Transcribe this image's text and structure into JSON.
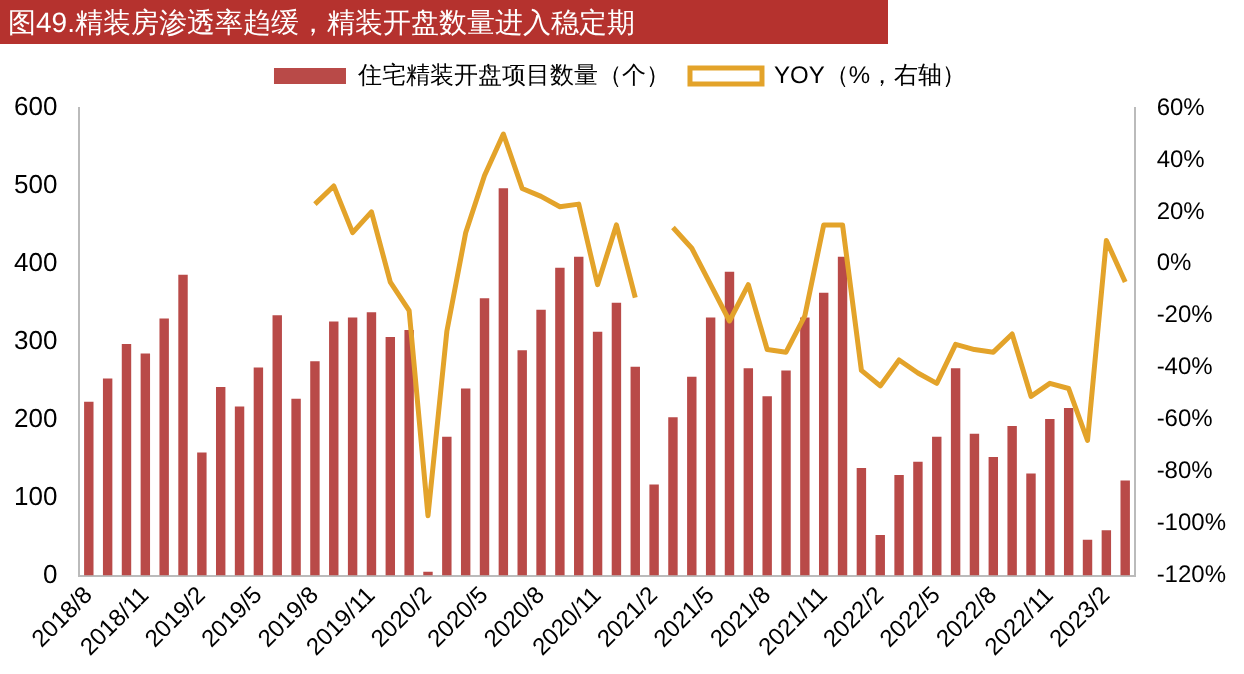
{
  "chart_data": {
    "type": "bar",
    "title": "图49.精装房渗透率趋缓，精装开盘数量进入稳定期",
    "categories": [
      "2018/8",
      null,
      null,
      "2018/11",
      null,
      null,
      "2019/2",
      null,
      null,
      "2019/5",
      null,
      null,
      "2019/8",
      null,
      null,
      "2019/11",
      null,
      null,
      "2020/2",
      null,
      null,
      "2020/5",
      null,
      null,
      "2020/8",
      null,
      null,
      "2020/11",
      null,
      null,
      "2021/2",
      null,
      null,
      "2021/5",
      null,
      null,
      "2021/8",
      null,
      null,
      "2021/11",
      null,
      null,
      "2022/2",
      null,
      null,
      "2022/5",
      null,
      null,
      "2022/8",
      null,
      null,
      "2022/11",
      null,
      null,
      "2023/2",
      null
    ],
    "series": [
      {
        "name": "住宅精装开盘项目数量（个）",
        "color": "#b94a48",
        "values": [
          223,
          253,
          297,
          285,
          330,
          386,
          158,
          242,
          217,
          267,
          334,
          227,
          275,
          326,
          331,
          338,
          306,
          315,
          5,
          178,
          240,
          356,
          497,
          289,
          341,
          395,
          409,
          313,
          350,
          268,
          117,
          203,
          255,
          331,
          390,
          266,
          230,
          263,
          331,
          363,
          409,
          138,
          52,
          129,
          146,
          178,
          266,
          182,
          152,
          192,
          131,
          201,
          215,
          46,
          58,
          122
        ]
      },
      {
        "name": "YOY（%，右轴）",
        "type": "line",
        "axis": "y2",
        "color": "#e3a32a",
        "values": [
          null,
          null,
          null,
          null,
          null,
          null,
          null,
          null,
          null,
          null,
          null,
          null,
          23,
          30,
          12,
          20,
          -7,
          -18,
          -97,
          -26,
          12,
          34,
          50,
          29,
          26,
          22,
          23,
          -8,
          15,
          -13,
          null,
          14,
          6,
          -8,
          -22,
          -8,
          -33,
          -34,
          -20,
          15,
          15,
          -41,
          -47,
          -37,
          -42,
          -46,
          -31,
          -33,
          -34,
          -27,
          -51,
          -46,
          -48,
          -68,
          9,
          -7
        ]
      }
    ],
    "ylim": [
      0,
      600
    ],
    "yticks": [
      0,
      100,
      200,
      300,
      400,
      500,
      600
    ],
    "y2lim": [
      -120,
      60
    ],
    "y2ticks": [
      {
        "value": -120,
        "label": "-120%"
      },
      {
        "value": -100,
        "label": "-100%"
      },
      {
        "value": -80,
        "label": "-80%"
      },
      {
        "value": -60,
        "label": "-60%"
      },
      {
        "value": -40,
        "label": "-40%"
      },
      {
        "value": -20,
        "label": "-20%"
      },
      {
        "value": 0,
        "label": "0%"
      },
      {
        "value": 20,
        "label": "20%"
      },
      {
        "value": 40,
        "label": "40%"
      },
      {
        "value": 60,
        "label": "60%"
      }
    ],
    "grid": false,
    "legend": "top"
  }
}
